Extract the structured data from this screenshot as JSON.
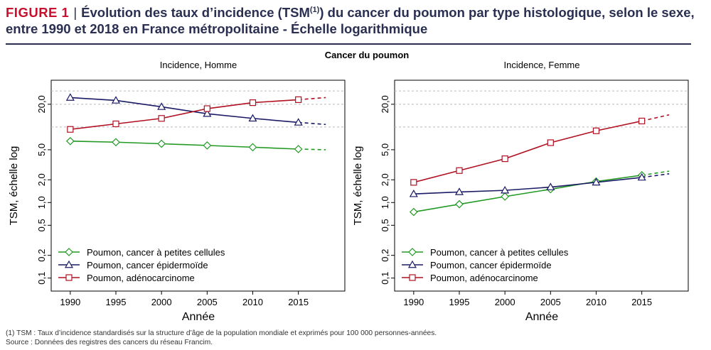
{
  "figure": {
    "label": "FIGURE 1",
    "separator": "|",
    "title_line1_pre": "Évolution des taux d’incidence (TSM",
    "title_line1_sup": "(1)",
    "title_line1_post": ") du cancer du poumon par type histologique, selon le sexe,",
    "title_line2": "entre 1990 et 2018 en France métropolitaine - Échelle logarithmique"
  },
  "colors": {
    "brand_red": "#c8102e",
    "title_navy": "#2a2f52"
  },
  "chart_data": {
    "type": "line",
    "title": "Cancer du poumon",
    "y_scale": "log",
    "xlabel": "Année",
    "ylabel": "TSM, échelle log",
    "x_ticks": [
      1990,
      1995,
      2000,
      2005,
      2010,
      2015
    ],
    "y_ticks": [
      0.1,
      0.2,
      0.5,
      1.0,
      2.0,
      5.0,
      20.0
    ],
    "y_tick_labels": [
      "0,1",
      "0,2",
      "0,5",
      "1,0",
      "2,0",
      "5,0",
      "20,0"
    ],
    "xlim": [
      1989,
      2019
    ],
    "ylim": [
      0.08,
      35
    ],
    "grid": "dashed horizontal lines at y = 10, 20, 30",
    "gridlines_y": [
      10,
      20,
      30
    ],
    "observed_end": 2015,
    "projection_end": 2018,
    "legend_position": "bottom-left",
    "series_defs": [
      {
        "key": "small",
        "name": "Poumon, cancer à petites cellules",
        "color": "#229922",
        "marker": "diamond"
      },
      {
        "key": "epid",
        "name": "Poumon, cancer épidermoïde",
        "color": "#1a1a66",
        "marker": "triangle"
      },
      {
        "key": "adeno",
        "name": "Poumon, adénocarcinome",
        "color": "#b01020",
        "marker": "square"
      }
    ],
    "panels": [
      {
        "title": "Incidence, Homme",
        "x": [
          1990,
          1995,
          2000,
          2005,
          2010,
          2015,
          2018
        ],
        "series": {
          "small": [
            6.5,
            6.3,
            6.0,
            5.7,
            5.4,
            5.1,
            5.0
          ],
          "epid": [
            24.5,
            22.5,
            18.5,
            15.0,
            13.0,
            11.5,
            10.8
          ],
          "adeno": [
            9.3,
            11.0,
            13.0,
            17.5,
            21.0,
            23.0,
            24.5
          ]
        }
      },
      {
        "title": "Incidence, Femme",
        "x": [
          1990,
          1995,
          2000,
          2005,
          2010,
          2015,
          2018
        ],
        "series": {
          "small": [
            0.75,
            0.95,
            1.2,
            1.5,
            1.9,
            2.3,
            2.6
          ],
          "epid": [
            1.3,
            1.38,
            1.45,
            1.6,
            1.85,
            2.15,
            2.4
          ],
          "adeno": [
            1.85,
            2.65,
            3.8,
            6.2,
            8.9,
            12.0,
            14.5
          ]
        }
      }
    ]
  },
  "footnotes": {
    "line1": "(1) TSM : Taux d’incidence standardisés sur la structure d’âge de la population mondiale et exprimés pour 100 000 personnes-années.",
    "line2": "Source : Données des registres des cancers du réseau Francim."
  }
}
